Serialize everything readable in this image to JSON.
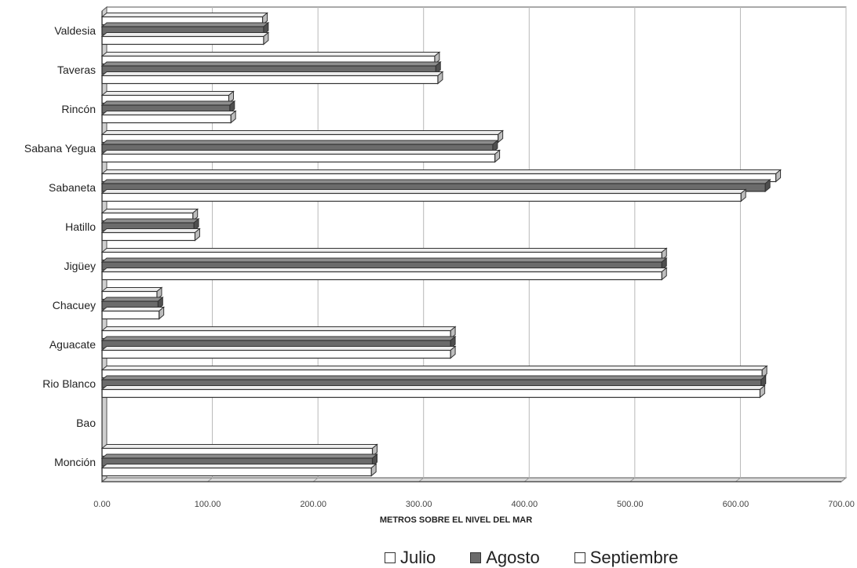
{
  "chart_data": {
    "type": "bar",
    "orientation": "horizontal",
    "categories": [
      "Valdesia",
      "Taveras",
      "Rincón",
      "Sabana Yegua",
      "Sabaneta",
      "Hatillo",
      "Jigüey",
      "Chacuey",
      "Aguacate",
      "Rio Blanco",
      "Bao",
      "Monción"
    ],
    "series": [
      {
        "name": "Julio",
        "values": [
          152,
          315,
          120,
          375,
          638,
          86,
          530,
          52,
          330,
          625,
          0,
          256
        ]
      },
      {
        "name": "Agosto",
        "values": [
          153,
          316,
          121,
          370,
          628,
          87,
          530,
          53,
          330,
          624,
          0,
          256
        ]
      },
      {
        "name": "Septiembre",
        "values": [
          153,
          318,
          122,
          372,
          605,
          88,
          530,
          54,
          330,
          623,
          0,
          255
        ]
      }
    ],
    "xlabel": "METROS SOBRE EL NIVEL DEL MAR",
    "xticks": [
      "0.00",
      "100.00",
      "200.00",
      "300.00",
      "400.00",
      "500.00",
      "600.00",
      "700.00"
    ],
    "xlim": [
      0,
      700
    ],
    "grid": true,
    "legend_position": "bottom",
    "colors": {
      "Julio": "#ffffff",
      "Agosto": "#6b6b6b",
      "Septiembre": "#ffffff",
      "edge": "#333333",
      "depth": "#9a9a9a"
    }
  }
}
